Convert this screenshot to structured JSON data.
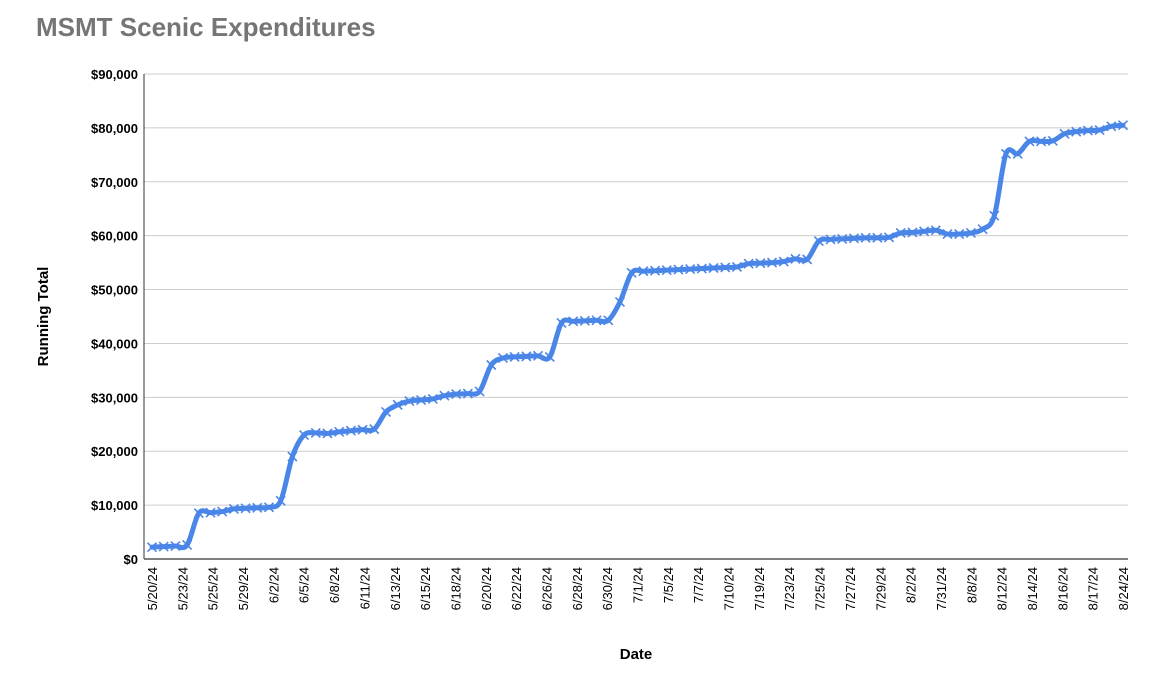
{
  "chart_data": {
    "type": "line",
    "title": "MSMT Scenic Expenditures",
    "xlabel": "Date",
    "ylabel": "Running Total",
    "ylim": [
      0,
      90000
    ],
    "yticks": [
      "$0",
      "$10,000",
      "$20,000",
      "$30,000",
      "$40,000",
      "$50,000",
      "$60,000",
      "$70,000",
      "$80,000",
      "$90,000"
    ],
    "grid": true,
    "marker": "x",
    "x_tick_labels": [
      "5/20/24",
      "5/23/24",
      "5/25/24",
      "5/29/24",
      "6/2/24",
      "6/5/24",
      "6/8/24",
      "6/11/24",
      "6/13/24",
      "6/15/24",
      "6/18/24",
      "6/20/24",
      "6/22/24",
      "6/26/24",
      "6/28/24",
      "6/30/24",
      "7/1/24",
      "7/5/24",
      "7/7/24",
      "7/10/24",
      "7/19/24",
      "7/23/24",
      "7/25/24",
      "7/27/24",
      "7/29/24",
      "8/2/24",
      "7/31/24",
      "8/8/24",
      "8/12/24",
      "8/14/24",
      "8/16/24",
      "8/17/24",
      "8/24/24"
    ],
    "series": [
      {
        "color": "#4a86e8",
        "values": [
          2200,
          2300,
          2400,
          2600,
          8500,
          8600,
          8800,
          9300,
          9400,
          9500,
          9600,
          10800,
          19000,
          23000,
          23400,
          23300,
          23600,
          23800,
          24000,
          24100,
          27300,
          28600,
          29300,
          29500,
          29700,
          30300,
          30600,
          30700,
          31100,
          36000,
          37300,
          37500,
          37600,
          37700,
          37500,
          43800,
          44100,
          44200,
          44300,
          44300,
          47700,
          53100,
          53400,
          53500,
          53600,
          53700,
          53800,
          53900,
          54000,
          54100,
          54200,
          54800,
          54900,
          55000,
          55200,
          55700,
          55600,
          59000,
          59300,
          59400,
          59500,
          59600,
          59600,
          59700,
          60500,
          60600,
          60800,
          61000,
          60300,
          60300,
          60500,
          61200,
          63700,
          75200,
          75200,
          77500,
          77500,
          77600,
          78900,
          79300,
          79500,
          79600,
          80300,
          80500
        ]
      }
    ]
  },
  "colors": {
    "line": "#4a86e8",
    "grid": "#cccccc",
    "title": "#757575"
  }
}
